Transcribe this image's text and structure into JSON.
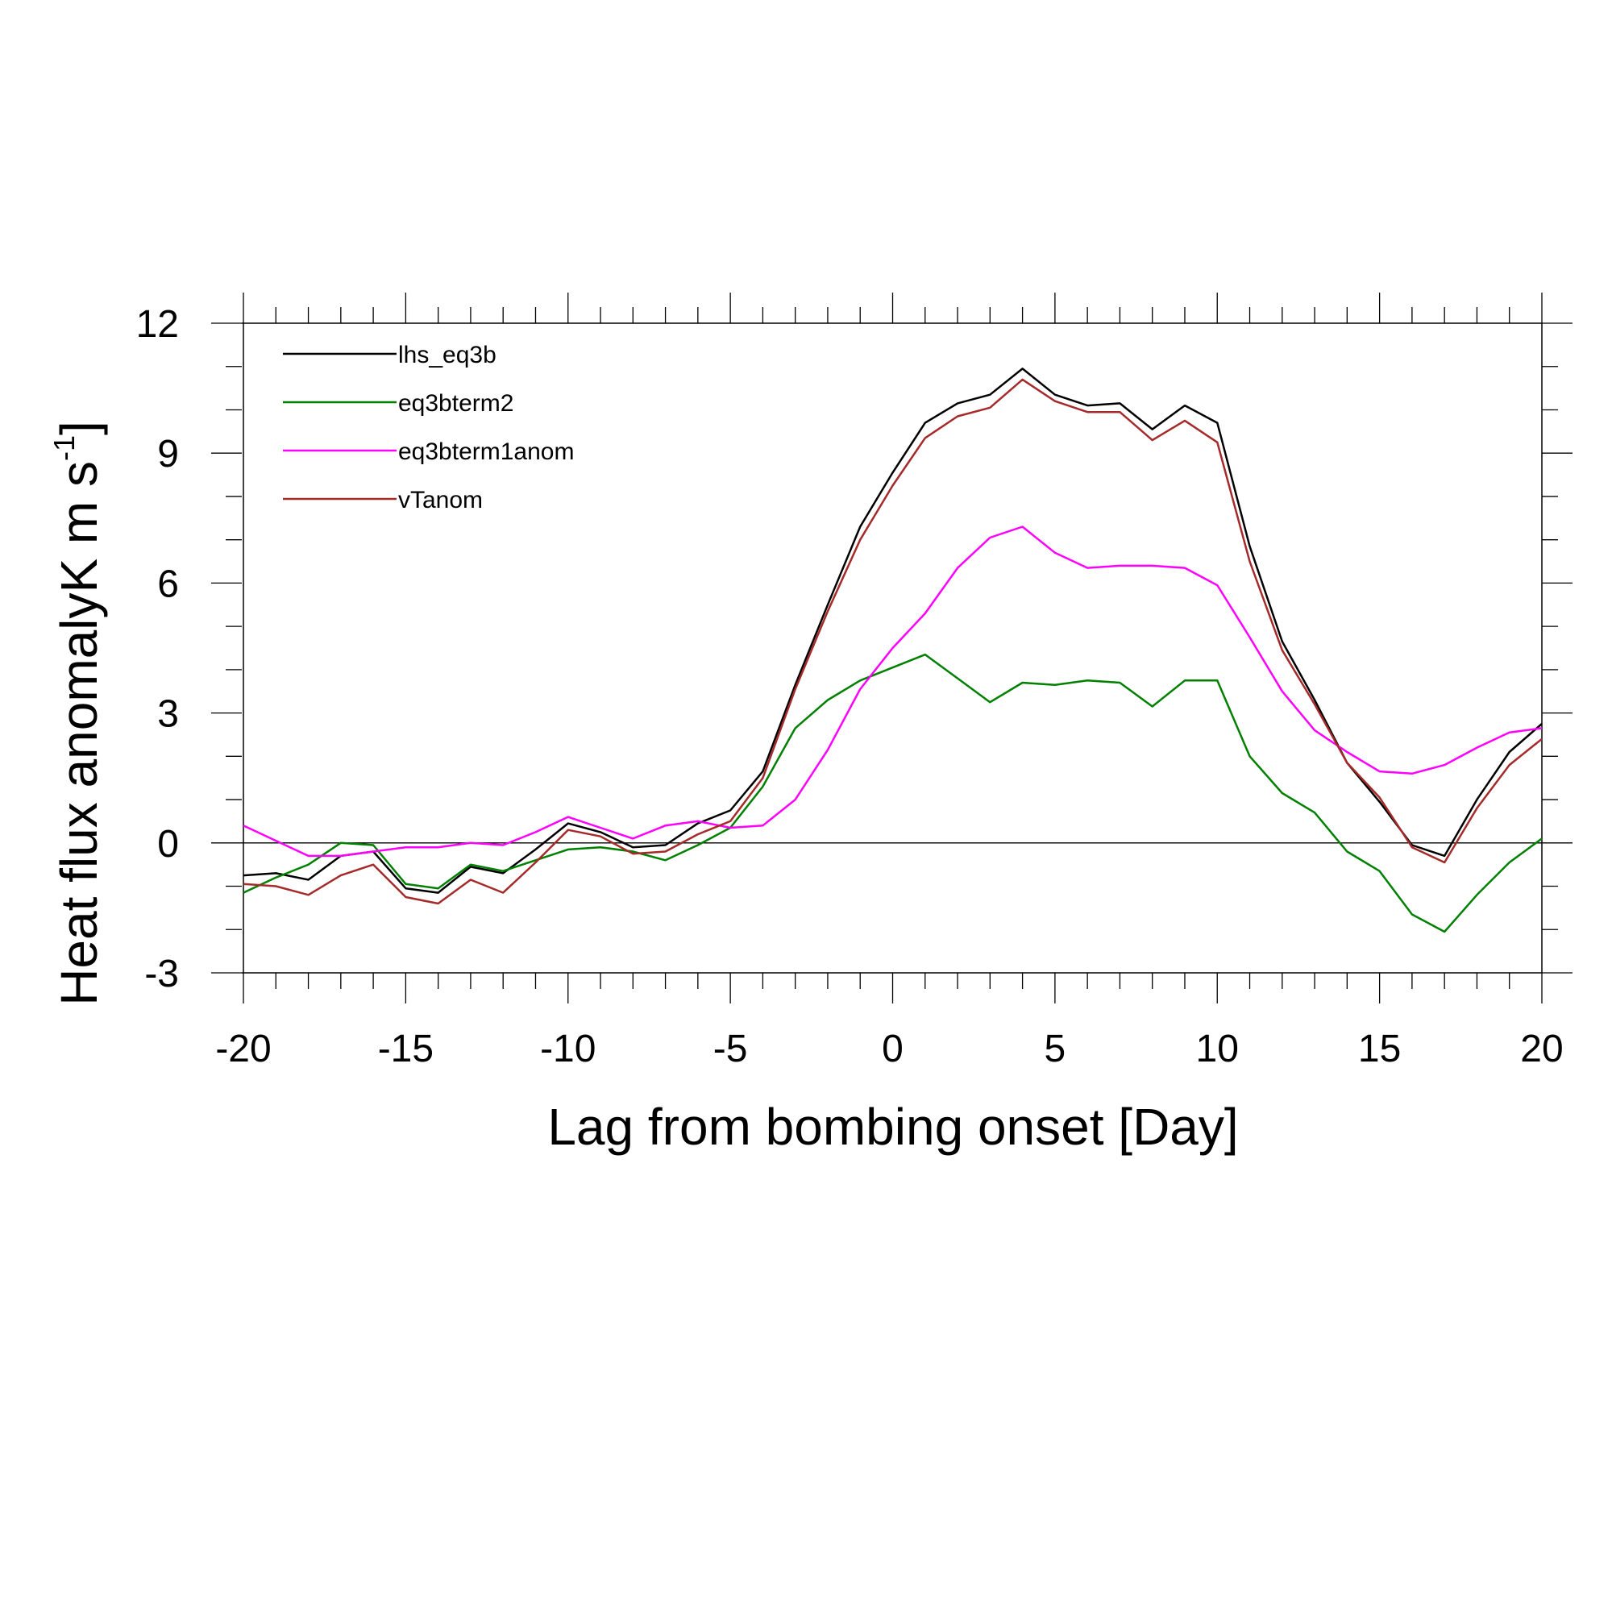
{
  "chart_data": {
    "type": "line",
    "title": "",
    "xlabel": "Lag from bombing onset [Day]",
    "ylabel": {
      "main": "Heat flux anomalyK m s",
      "sup": "-1",
      "close": "]"
    },
    "xlim": [
      -20,
      20
    ],
    "ylim": [
      -3,
      12
    ],
    "x_ticks": [
      -20,
      -15,
      -10,
      -5,
      0,
      5,
      10,
      15,
      20
    ],
    "y_ticks": [
      -3,
      0,
      3,
      6,
      9,
      12
    ],
    "x_tick_labels": [
      "-20",
      "-15",
      "-10",
      "-5",
      "0",
      "5",
      "10",
      "15",
      "20"
    ],
    "y_tick_labels": [
      "-3",
      "0",
      "3",
      "6",
      "9",
      "12"
    ],
    "zero_line": true,
    "grid": false,
    "legend_position": "top-left",
    "x": [
      -20,
      -19,
      -18,
      -17,
      -16,
      -15,
      -14,
      -13,
      -12,
      -11,
      -10,
      -9,
      -8,
      -7,
      -6,
      -5,
      -4,
      -3,
      -2,
      -1,
      0,
      1,
      2,
      3,
      4,
      5,
      6,
      7,
      8,
      9,
      10,
      11,
      12,
      13,
      14,
      15,
      16,
      17,
      18,
      19,
      20
    ],
    "series": [
      {
        "name": "lhs_eq3b",
        "color": "#000000",
        "values": [
          -0.75,
          -0.7,
          -0.85,
          -0.3,
          -0.2,
          -1.05,
          -1.15,
          -0.55,
          -0.7,
          -0.15,
          0.45,
          0.25,
          -0.1,
          -0.05,
          0.45,
          0.75,
          1.65,
          3.65,
          5.5,
          7.3,
          8.55,
          9.7,
          10.15,
          10.35,
          10.95,
          10.35,
          10.1,
          10.15,
          9.55,
          10.1,
          9.7,
          6.85,
          4.65,
          3.3,
          1.85,
          0.95,
          -0.05,
          -0.3,
          1.0,
          2.1,
          2.75
        ]
      },
      {
        "name": "eq3bterm2",
        "color": "#008000",
        "values": [
          -1.15,
          -0.8,
          -0.5,
          0.0,
          -0.05,
          -0.95,
          -1.05,
          -0.5,
          -0.65,
          -0.4,
          -0.15,
          -0.1,
          -0.2,
          -0.4,
          -0.05,
          0.35,
          1.3,
          2.65,
          3.3,
          3.75,
          4.05,
          4.35,
          3.8,
          3.25,
          3.7,
          3.65,
          3.75,
          3.7,
          3.15,
          3.75,
          3.75,
          2.0,
          1.15,
          0.7,
          -0.2,
          -0.65,
          -1.65,
          -2.05,
          -1.2,
          -0.45,
          0.1
        ]
      },
      {
        "name": "eq3bterm1anom",
        "color": "#ff00ff",
        "values": [
          0.4,
          0.05,
          -0.3,
          -0.3,
          -0.2,
          -0.1,
          -0.1,
          0.0,
          -0.05,
          0.25,
          0.6,
          0.35,
          0.1,
          0.4,
          0.5,
          0.35,
          0.4,
          1.0,
          2.15,
          3.55,
          4.5,
          5.3,
          6.35,
          7.05,
          7.3,
          6.7,
          6.35,
          6.4,
          6.4,
          6.35,
          5.95,
          4.75,
          3.5,
          2.6,
          2.1,
          1.65,
          1.6,
          1.8,
          2.2,
          2.55,
          2.65
        ]
      },
      {
        "name": "vTanom",
        "color": "#a52a2a",
        "values": [
          -0.95,
          -1.0,
          -1.2,
          -0.75,
          -0.5,
          -1.25,
          -1.4,
          -0.85,
          -1.15,
          -0.45,
          0.3,
          0.15,
          -0.25,
          -0.2,
          0.2,
          0.5,
          1.5,
          3.55,
          5.35,
          7.0,
          8.25,
          9.35,
          9.85,
          10.05,
          10.7,
          10.2,
          9.95,
          9.95,
          9.3,
          9.75,
          9.25,
          6.5,
          4.45,
          3.2,
          1.85,
          1.05,
          -0.1,
          -0.45,
          0.8,
          1.8,
          2.4
        ]
      }
    ]
  }
}
